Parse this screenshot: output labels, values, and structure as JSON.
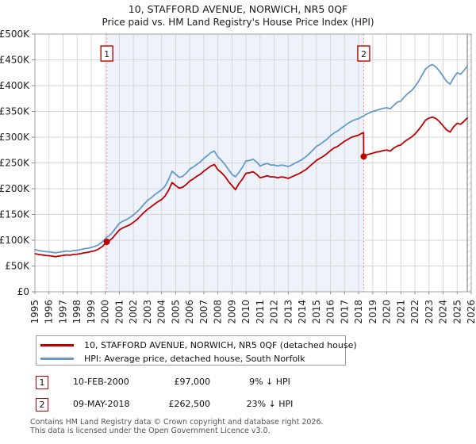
{
  "title": "10, STAFFORD AVENUE, NORWICH, NR5 0QF",
  "subtitle": "Price paid vs. HM Land Registry's House Price Index (HPI)",
  "footer": {
    "line1": "Contains HM Land Registry data © Crown copyright and database right 2026.",
    "line2": "This data is licensed under the Open Government Licence v3.0."
  },
  "chart_data": {
    "type": "line",
    "title": "10, STAFFORD AVENUE, NORWICH, NR5 0QF",
    "subtitle": "Price paid vs. HM Land Registry's House Price Index (HPI)",
    "x_min": 1995,
    "x_max": 2026,
    "y_min": 0,
    "y_max": 500000,
    "y_tick_step": 50000,
    "grid": true,
    "legend_position": "below",
    "y_tick_labels": [
      "£0",
      "£50K",
      "£100K",
      "£150K",
      "£200K",
      "£250K",
      "£300K",
      "£350K",
      "£400K",
      "£450K",
      "£500K"
    ],
    "x_tick_labels": [
      "1995",
      "1996",
      "1997",
      "1998",
      "1999",
      "2000",
      "2001",
      "2002",
      "2003",
      "2004",
      "2005",
      "2006",
      "2007",
      "2008",
      "2009",
      "2010",
      "2011",
      "2012",
      "2013",
      "2014",
      "2015",
      "2016",
      "2017",
      "2018",
      "2019",
      "2020",
      "2021",
      "2022",
      "2023",
      "2024",
      "2025",
      "2026"
    ],
    "colors": {
      "shade": "#eef2fb",
      "dash": "#ee8888",
      "dot": "#c00000",
      "grid": "#d6d6d6",
      "border": "#a0a0a0",
      "now_line": "#888888",
      "hatch": "#c4c4c4"
    },
    "shaded_region": {
      "from_x": 2000.11,
      "to_x": 2018.36
    },
    "data_end_x": 2025.72,
    "series": [
      {
        "name": "HPI: Average price, detached house, South Norfolk",
        "color": "#6699cc",
        "points_unit": "GBP_thousands",
        "points": [
          [
            1995.0,
            82
          ],
          [
            1995.25,
            80
          ],
          [
            1995.5,
            79
          ],
          [
            1995.75,
            78
          ],
          [
            1996.0,
            77.5
          ],
          [
            1996.25,
            76.5
          ],
          [
            1996.5,
            75.5
          ],
          [
            1996.75,
            77
          ],
          [
            1997.0,
            78
          ],
          [
            1997.25,
            79
          ],
          [
            1997.5,
            78.5
          ],
          [
            1997.75,
            80
          ],
          [
            1998.0,
            80.5
          ],
          [
            1998.25,
            82
          ],
          [
            1998.5,
            83.5
          ],
          [
            1998.75,
            84.5
          ],
          [
            1999.0,
            86
          ],
          [
            1999.25,
            88
          ],
          [
            1999.5,
            91
          ],
          [
            1999.75,
            96
          ],
          [
            2000.0,
            103
          ],
          [
            2000.11,
            106
          ],
          [
            2000.25,
            108
          ],
          [
            2000.5,
            115
          ],
          [
            2000.75,
            124
          ],
          [
            2001.0,
            133
          ],
          [
            2001.25,
            137
          ],
          [
            2001.5,
            140
          ],
          [
            2001.75,
            144
          ],
          [
            2002.0,
            149
          ],
          [
            2002.25,
            155
          ],
          [
            2002.5,
            162
          ],
          [
            2002.75,
            170
          ],
          [
            2003.0,
            177
          ],
          [
            2003.25,
            182
          ],
          [
            2003.5,
            188
          ],
          [
            2003.75,
            193
          ],
          [
            2004.0,
            198
          ],
          [
            2004.25,
            205
          ],
          [
            2004.5,
            218
          ],
          [
            2004.75,
            234
          ],
          [
            2005.0,
            228
          ],
          [
            2005.25,
            222
          ],
          [
            2005.5,
            224
          ],
          [
            2005.75,
            230
          ],
          [
            2006.0,
            238
          ],
          [
            2006.25,
            242
          ],
          [
            2006.5,
            247
          ],
          [
            2006.75,
            252
          ],
          [
            2007.0,
            259
          ],
          [
            2007.25,
            264
          ],
          [
            2007.5,
            270
          ],
          [
            2007.75,
            273
          ],
          [
            2008.0,
            262
          ],
          [
            2008.25,
            255
          ],
          [
            2008.5,
            247
          ],
          [
            2008.75,
            237
          ],
          [
            2009.0,
            228
          ],
          [
            2009.25,
            223
          ],
          [
            2009.5,
            232
          ],
          [
            2009.75,
            242
          ],
          [
            2010.0,
            254
          ],
          [
            2010.25,
            255
          ],
          [
            2010.5,
            257
          ],
          [
            2010.75,
            252
          ],
          [
            2011.0,
            244
          ],
          [
            2011.25,
            247
          ],
          [
            2011.5,
            249
          ],
          [
            2011.75,
            246
          ],
          [
            2012.0,
            246
          ],
          [
            2012.25,
            244
          ],
          [
            2012.5,
            246
          ],
          [
            2012.75,
            245
          ],
          [
            2013.0,
            243
          ],
          [
            2013.25,
            246
          ],
          [
            2013.5,
            250
          ],
          [
            2013.75,
            253
          ],
          [
            2014.0,
            257
          ],
          [
            2014.25,
            262
          ],
          [
            2014.5,
            268
          ],
          [
            2014.75,
            275
          ],
          [
            2015.0,
            282
          ],
          [
            2015.25,
            286
          ],
          [
            2015.5,
            291
          ],
          [
            2015.75,
            296
          ],
          [
            2016.0,
            303
          ],
          [
            2016.25,
            308
          ],
          [
            2016.5,
            312
          ],
          [
            2016.75,
            317
          ],
          [
            2017.0,
            322
          ],
          [
            2017.25,
            327
          ],
          [
            2017.5,
            331
          ],
          [
            2017.75,
            334
          ],
          [
            2018.0,
            336
          ],
          [
            2018.25,
            340
          ],
          [
            2018.36,
            341
          ],
          [
            2018.5,
            344
          ],
          [
            2018.75,
            347
          ],
          [
            2019.0,
            350
          ],
          [
            2019.25,
            352
          ],
          [
            2019.5,
            354
          ],
          [
            2019.75,
            356
          ],
          [
            2020.0,
            357
          ],
          [
            2020.25,
            355
          ],
          [
            2020.5,
            362
          ],
          [
            2020.75,
            368
          ],
          [
            2021.0,
            370
          ],
          [
            2021.25,
            378
          ],
          [
            2021.5,
            385
          ],
          [
            2021.75,
            390
          ],
          [
            2022.0,
            398
          ],
          [
            2022.25,
            408
          ],
          [
            2022.5,
            420
          ],
          [
            2022.75,
            432
          ],
          [
            2023.0,
            438
          ],
          [
            2023.25,
            441
          ],
          [
            2023.5,
            436
          ],
          [
            2023.75,
            428
          ],
          [
            2024.0,
            418
          ],
          [
            2024.25,
            408
          ],
          [
            2024.5,
            403
          ],
          [
            2024.75,
            415
          ],
          [
            2025.0,
            425
          ],
          [
            2025.25,
            422
          ],
          [
            2025.5,
            430
          ],
          [
            2025.72,
            438
          ]
        ]
      },
      {
        "name": "10, STAFFORD AVENUE, NORWICH, NR5 0QF (detached house)",
        "color": "#c00000",
        "points_unit": "GBP_thousands",
        "points": [
          [
            1995.0,
            74
          ],
          [
            1995.25,
            72.5
          ],
          [
            1995.5,
            71.5
          ],
          [
            1995.75,
            70.5
          ],
          [
            1996.0,
            70
          ],
          [
            1996.25,
            69
          ],
          [
            1996.5,
            68
          ],
          [
            1996.75,
            69.5
          ],
          [
            1997.0,
            70.5
          ],
          [
            1997.25,
            71.5
          ],
          [
            1997.5,
            71
          ],
          [
            1997.75,
            72.5
          ],
          [
            1998.0,
            73
          ],
          [
            1998.25,
            74
          ],
          [
            1998.5,
            75.5
          ],
          [
            1998.75,
            76.5
          ],
          [
            1999.0,
            78
          ],
          [
            1999.25,
            79.5
          ],
          [
            1999.5,
            82.5
          ],
          [
            1999.75,
            87
          ],
          [
            2000.0,
            93
          ],
          [
            2000.11,
            97
          ],
          [
            2000.25,
            98
          ],
          [
            2000.5,
            104
          ],
          [
            2000.75,
            112
          ],
          [
            2001.0,
            120
          ],
          [
            2001.25,
            124
          ],
          [
            2001.5,
            127
          ],
          [
            2001.75,
            130
          ],
          [
            2002.0,
            135
          ],
          [
            2002.25,
            140
          ],
          [
            2002.5,
            147
          ],
          [
            2002.75,
            154
          ],
          [
            2003.0,
            160
          ],
          [
            2003.25,
            165
          ],
          [
            2003.5,
            170
          ],
          [
            2003.75,
            175
          ],
          [
            2004.0,
            179
          ],
          [
            2004.25,
            186
          ],
          [
            2004.5,
            197
          ],
          [
            2004.75,
            212
          ],
          [
            2005.0,
            206
          ],
          [
            2005.25,
            201
          ],
          [
            2005.5,
            203
          ],
          [
            2005.75,
            208
          ],
          [
            2006.0,
            215
          ],
          [
            2006.25,
            219
          ],
          [
            2006.5,
            224
          ],
          [
            2006.75,
            228
          ],
          [
            2007.0,
            234
          ],
          [
            2007.25,
            239
          ],
          [
            2007.5,
            244
          ],
          [
            2007.75,
            247
          ],
          [
            2008.0,
            237
          ],
          [
            2008.25,
            231
          ],
          [
            2008.5,
            224
          ],
          [
            2008.75,
            214
          ],
          [
            2009.0,
            206
          ],
          [
            2009.25,
            198
          ],
          [
            2009.5,
            210
          ],
          [
            2009.75,
            219
          ],
          [
            2010.0,
            230
          ],
          [
            2010.25,
            231
          ],
          [
            2010.5,
            233
          ],
          [
            2010.75,
            228
          ],
          [
            2011.0,
            221
          ],
          [
            2011.25,
            223
          ],
          [
            2011.5,
            225
          ],
          [
            2011.75,
            223
          ],
          [
            2012.0,
            223
          ],
          [
            2012.25,
            221
          ],
          [
            2012.5,
            223
          ],
          [
            2012.75,
            222
          ],
          [
            2013.0,
            220
          ],
          [
            2013.25,
            223
          ],
          [
            2013.5,
            226
          ],
          [
            2013.75,
            229
          ],
          [
            2014.0,
            233
          ],
          [
            2014.25,
            237
          ],
          [
            2014.5,
            243
          ],
          [
            2014.75,
            249
          ],
          [
            2015.0,
            255
          ],
          [
            2015.25,
            259
          ],
          [
            2015.5,
            263
          ],
          [
            2015.75,
            268
          ],
          [
            2016.0,
            274
          ],
          [
            2016.25,
            279
          ],
          [
            2016.5,
            282
          ],
          [
            2016.75,
            287
          ],
          [
            2017.0,
            292
          ],
          [
            2017.25,
            296
          ],
          [
            2017.5,
            300
          ],
          [
            2017.75,
            302
          ],
          [
            2018.0,
            304
          ],
          [
            2018.25,
            308
          ],
          [
            2018.35,
            308.5
          ],
          [
            2018.36,
            262.5
          ],
          [
            2018.5,
            265
          ],
          [
            2018.75,
            267
          ],
          [
            2019.0,
            269
          ],
          [
            2019.25,
            271
          ],
          [
            2019.5,
            272
          ],
          [
            2019.75,
            274
          ],
          [
            2020.0,
            275
          ],
          [
            2020.25,
            273
          ],
          [
            2020.5,
            279
          ],
          [
            2020.75,
            283
          ],
          [
            2021.0,
            285
          ],
          [
            2021.25,
            291
          ],
          [
            2021.5,
            296
          ],
          [
            2021.75,
            300
          ],
          [
            2022.0,
            306
          ],
          [
            2022.25,
            314
          ],
          [
            2022.5,
            323
          ],
          [
            2022.75,
            333
          ],
          [
            2023.0,
            337
          ],
          [
            2023.25,
            339
          ],
          [
            2023.5,
            336
          ],
          [
            2023.75,
            330
          ],
          [
            2024.0,
            322
          ],
          [
            2024.25,
            314
          ],
          [
            2024.5,
            310
          ],
          [
            2024.75,
            320
          ],
          [
            2025.0,
            327
          ],
          [
            2025.25,
            325
          ],
          [
            2025.5,
            331
          ],
          [
            2025.72,
            337
          ]
        ]
      }
    ],
    "markers": [
      {
        "label": "1",
        "x": 2000.11,
        "value": 97000,
        "date": "10-FEB-2000",
        "price": "£97,000",
        "vs_hpi": "9% ↓ HPI"
      },
      {
        "label": "2",
        "x": 2018.36,
        "value": 262500,
        "date": "09-MAY-2018",
        "price": "£262,500",
        "vs_hpi": "23% ↓ HPI"
      }
    ]
  },
  "legend": {
    "property_label": "10, STAFFORD AVENUE, NORWICH, NR5 0QF (detached house)",
    "hpi_label": "HPI: Average price, detached house, South Norfolk"
  }
}
